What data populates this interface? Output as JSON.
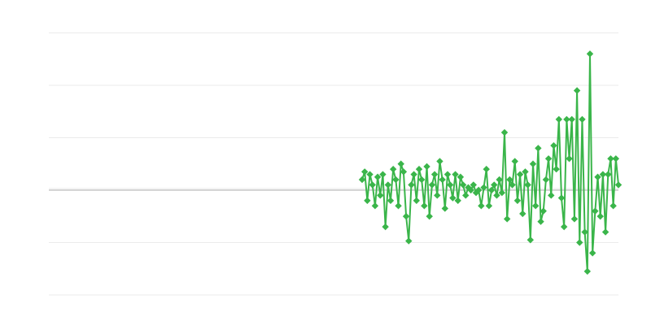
{
  "chart_data": {
    "type": "line",
    "title": "",
    "xlabel": "",
    "ylabel": "",
    "markers": "diamond",
    "grid": true,
    "legend": "none",
    "xlim": [
      0,
      220
    ],
    "ylim": [
      -2,
      3
    ],
    "yticks": [
      -2,
      -1,
      0,
      1,
      2,
      3
    ],
    "x_start": 121,
    "series": [
      {
        "color": "#3ab54a",
        "values": [
          0.2,
          0.35,
          -0.2,
          0.3,
          0.1,
          -0.3,
          0.25,
          -0.1,
          0.3,
          -0.7,
          0.1,
          -0.2,
          0.4,
          0.2,
          -0.3,
          0.5,
          0.35,
          -0.5,
          -0.97,
          0.1,
          0.3,
          -0.2,
          0.4,
          0.2,
          -0.3,
          0.45,
          -0.5,
          0.1,
          0.3,
          -0.1,
          0.55,
          0.2,
          -0.35,
          0.3,
          0.1,
          -0.15,
          0.3,
          -0.2,
          0.25,
          0.1,
          -0.1,
          0.05,
          0.0,
          0.1,
          -0.05,
          0.0,
          -0.3,
          0.05,
          0.4,
          -0.3,
          0.0,
          0.1,
          -0.1,
          0.2,
          -0.05,
          1.1,
          -0.55,
          0.2,
          0.1,
          0.55,
          -0.2,
          0.3,
          -0.45,
          0.35,
          0.1,
          -0.95,
          0.5,
          -0.3,
          0.8,
          -0.6,
          -0.4,
          0.2,
          0.6,
          -0.1,
          0.85,
          0.4,
          1.35,
          -0.15,
          -0.7,
          1.35,
          0.6,
          1.35,
          -0.55,
          1.9,
          -1.0,
          1.35,
          -0.8,
          -1.55,
          2.6,
          -1.2,
          -0.4,
          0.25,
          -0.5,
          0.3,
          -0.8,
          0.3,
          0.6,
          -0.3,
          0.6,
          0.1
        ]
      }
    ]
  },
  "colors": {
    "grid": "#ebebeb",
    "zero_axis": "#aaaaaa"
  }
}
